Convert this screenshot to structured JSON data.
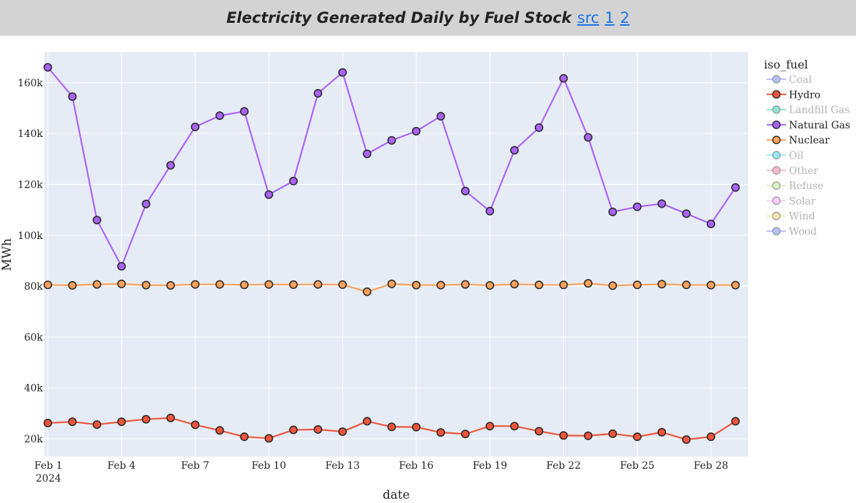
{
  "header": {
    "title": "Electricity Generated Daily by Fuel Stock",
    "links": [
      "src",
      "1",
      "2"
    ]
  },
  "chart_data": {
    "type": "line",
    "title": "Electricity Generated Daily by Fuel Stock",
    "xlabel": "date",
    "ylabel": "MWh",
    "x_start": "2024-02-01",
    "x_ticks": [
      "Feb 1",
      "Feb 4",
      "Feb 7",
      "Feb 10",
      "Feb 13",
      "Feb 16",
      "Feb 19",
      "Feb 22",
      "Feb 25",
      "Feb 28"
    ],
    "x_tick_year": "2024",
    "y_ticks": [
      "20k",
      "40k",
      "60k",
      "80k",
      "100k",
      "120k",
      "140k",
      "160k"
    ],
    "ylim": [
      13000,
      172000
    ],
    "grid": true,
    "legend_title": "iso_fuel",
    "legend_position": "right",
    "legend": [
      {
        "name": "Coal",
        "color": "#636efa",
        "visible": false
      },
      {
        "name": "Hydro",
        "color": "#ef553b",
        "visible": true
      },
      {
        "name": "Landfill Gas",
        "color": "#00cc96",
        "visible": false
      },
      {
        "name": "Natural Gas",
        "color": "#ab63fa",
        "visible": true
      },
      {
        "name": "Nuclear",
        "color": "#ffa15a",
        "visible": true
      },
      {
        "name": "Oil",
        "color": "#19d3f3",
        "visible": false
      },
      {
        "name": "Other",
        "color": "#ff6692",
        "visible": false
      },
      {
        "name": "Refuse",
        "color": "#b6e880",
        "visible": false
      },
      {
        "name": "Solar",
        "color": "#ff97ff",
        "visible": false
      },
      {
        "name": "Wind",
        "color": "#fecb52",
        "visible": false
      },
      {
        "name": "Wood",
        "color": "#636efa",
        "visible": false
      }
    ],
    "series": [
      {
        "name": "Natural Gas",
        "color": "#ab63fa",
        "values": [
          166000,
          154500,
          106000,
          87800,
          112300,
          127500,
          142600,
          147000,
          148700,
          116000,
          121300,
          155800,
          164000,
          132000,
          137300,
          140900,
          146800,
          117400,
          109500,
          133400,
          142300,
          161700,
          138500,
          109200,
          111200,
          112400,
          108500,
          104500,
          118800
        ]
      },
      {
        "name": "Nuclear",
        "color": "#ffa15a",
        "values": [
          80500,
          80300,
          80700,
          80900,
          80400,
          80300,
          80700,
          80700,
          80500,
          80700,
          80600,
          80700,
          80600,
          77800,
          80900,
          80400,
          80400,
          80700,
          80300,
          80800,
          80500,
          80500,
          81100,
          80200,
          80500,
          80800,
          80500,
          80400,
          80400
        ]
      },
      {
        "name": "Hydro",
        "color": "#ef553b",
        "values": [
          26200,
          26700,
          25600,
          26700,
          27700,
          28200,
          25500,
          23300,
          20800,
          20200,
          23500,
          23700,
          22800,
          26900,
          24700,
          24600,
          22500,
          21900,
          25000,
          25000,
          23000,
          21300,
          21200,
          22000,
          20800,
          22600,
          19700,
          20800,
          26900
        ]
      }
    ]
  }
}
